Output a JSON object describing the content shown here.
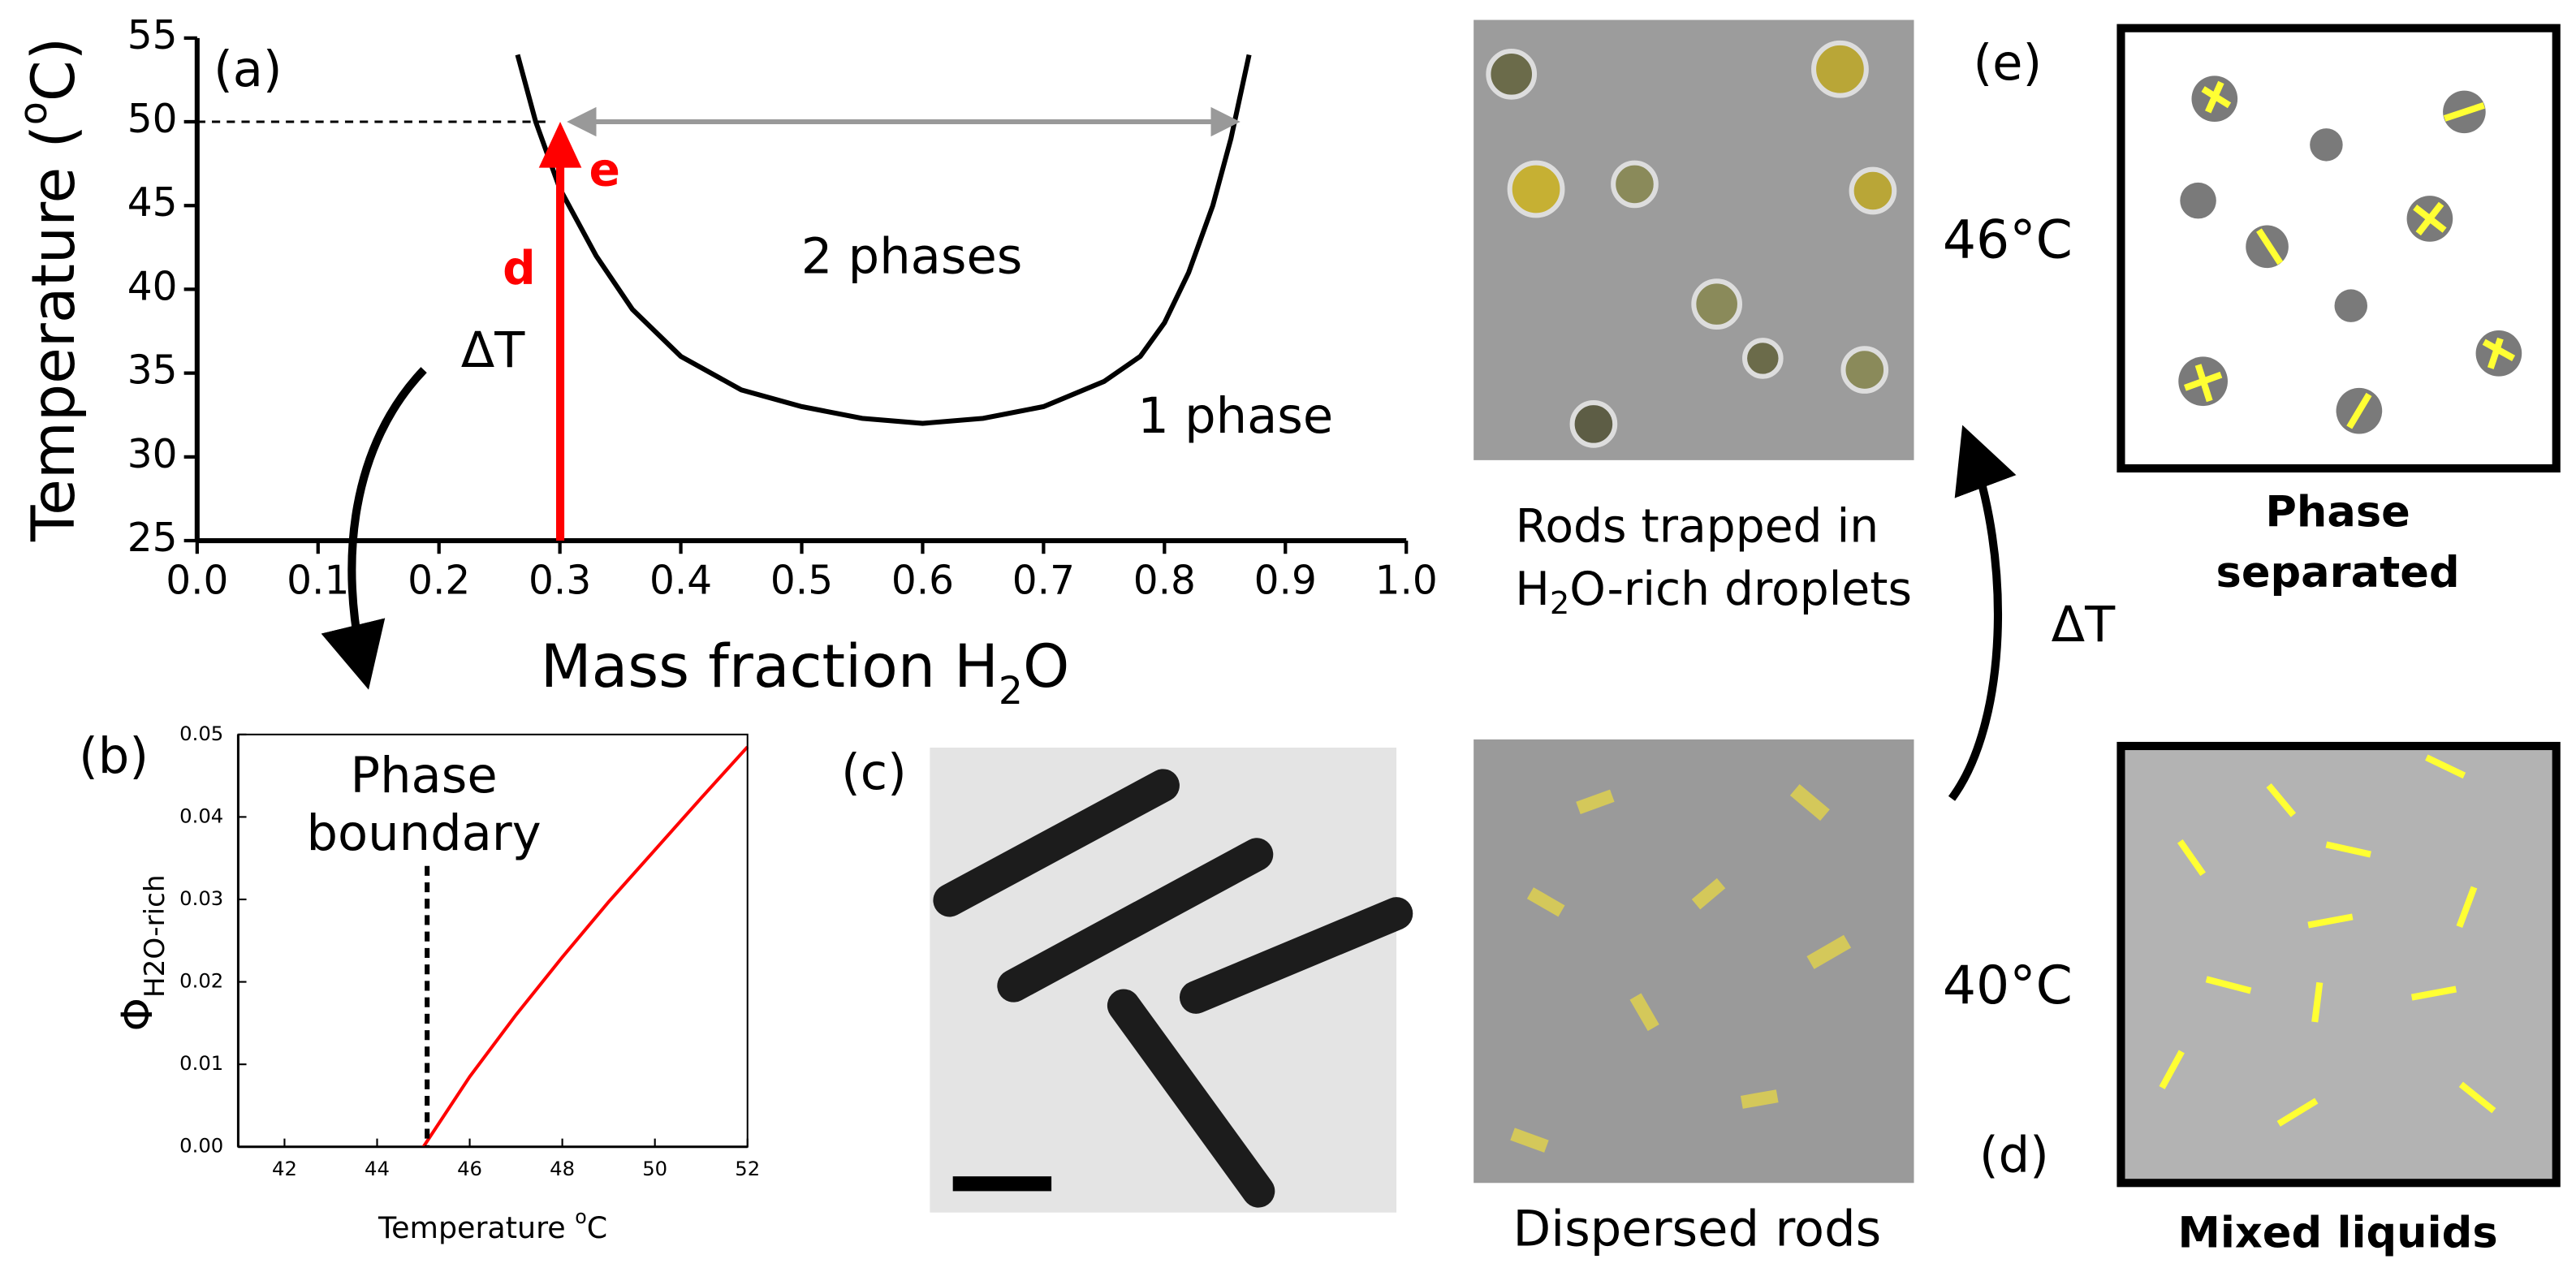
{
  "chart_data": [
    {
      "type": "line",
      "panel_label": "(a)",
      "xlabel": [
        "Mass fraction H",
        "2",
        "O"
      ],
      "ylabel": [
        "Temperature (",
        "o",
        "C)"
      ],
      "xlim": [
        0,
        1
      ],
      "ylim": [
        25,
        55
      ],
      "xticks": [
        {
          "value": 0,
          "label": "0.0"
        },
        {
          "value": 0.1,
          "label": "0.1"
        },
        {
          "value": 0.2,
          "label": "0.2"
        },
        {
          "value": 0.3,
          "label": "0.3"
        },
        {
          "value": 0.4,
          "label": "0.4"
        },
        {
          "value": 0.5,
          "label": "0.5"
        },
        {
          "value": 0.6,
          "label": "0.6"
        },
        {
          "value": 0.7,
          "label": "0.7"
        },
        {
          "value": 0.8,
          "label": "0.8"
        },
        {
          "value": 0.9,
          "label": "0.9"
        },
        {
          "value": 1,
          "label": "1.0"
        }
      ],
      "yticks": [
        25,
        30,
        35,
        40,
        45,
        50,
        55
      ],
      "series": [
        {
          "color": "#000000",
          "x": [
            0.265,
            0.28,
            0.3,
            0.33,
            0.36,
            0.4,
            0.45,
            0.5,
            0.55,
            0.6,
            0.65,
            0.7,
            0.75,
            0.78,
            0.8,
            0.82,
            0.84,
            0.855,
            0.87
          ],
          "values": [
            54,
            50,
            46,
            42,
            38.8,
            36,
            34,
            33,
            32.3,
            32,
            32.3,
            33,
            34.5,
            36,
            38,
            41,
            45,
            49,
            54
          ]
        }
      ],
      "annotations": [
        "2 phases",
        "1 phase",
        "d",
        "e",
        "ΔT"
      ]
    },
    {
      "type": "line",
      "panel_label": "(b)",
      "xlabel": [
        "Temperature ",
        "o",
        "C"
      ],
      "ylabel": [
        "Φ",
        "H2O-rich"
      ],
      "xlim": [
        41,
        52
      ],
      "ylim": [
        0,
        0.05
      ],
      "xticks": [
        42,
        44,
        46,
        48,
        50,
        52
      ],
      "yticks": [
        {
          "value": 0,
          "label": "0.00"
        },
        {
          "value": 0.01,
          "label": "0.01"
        },
        {
          "value": 0.02,
          "label": "0.02"
        },
        {
          "value": 0.03,
          "label": "0.03"
        },
        {
          "value": 0.04,
          "label": "0.04"
        },
        {
          "value": 0.05,
          "label": "0.05"
        }
      ],
      "series": [
        {
          "color": "#ff0000",
          "x": [
            45,
            46,
            47,
            48,
            49,
            50,
            51,
            52
          ],
          "values": [
            0,
            0.0085,
            0.016,
            0.023,
            0.0297,
            0.036,
            0.0423,
            0.0485
          ]
        }
      ],
      "annotations": [
        "Phase",
        "boundary"
      ]
    }
  ],
  "panels": {
    "c_label": "(c)",
    "d_label": "(d)",
    "e_label": "(e)",
    "top_caption": [
      "Rods trapped in",
      "H",
      "2",
      "O-rich droplets"
    ],
    "bottom_caption": "Dispersed rods",
    "temp_top": "46°C",
    "temp_bottom": "40°C",
    "delta_t": "ΔT",
    "e_caption": [
      "Phase",
      "separated"
    ],
    "d_caption": "Mixed liquids"
  }
}
